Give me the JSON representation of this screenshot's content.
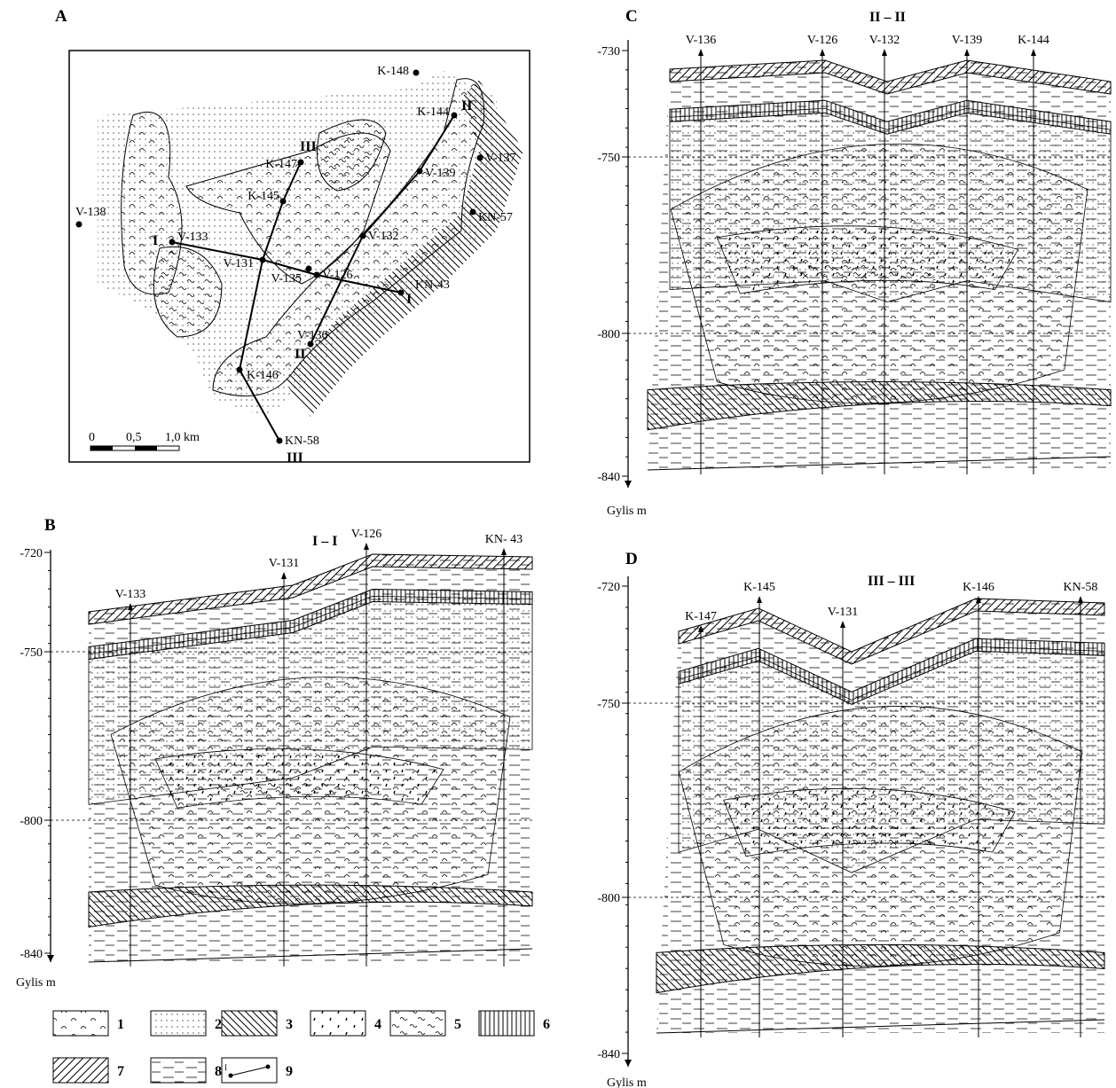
{
  "map": {
    "letter": "A",
    "wells": [
      "K-148",
      "K-144",
      "V-137",
      "K-147",
      "V-139",
      "K-145",
      "KN-57",
      "V-138",
      "V-133",
      "V-132",
      "V-131",
      "V-135",
      "V-126",
      "KN-43",
      "V-136",
      "K-146",
      "KN-58"
    ],
    "section_marks": [
      "I",
      "I",
      "II",
      "II",
      "III",
      "III"
    ],
    "scale": [
      "0",
      "0,5",
      "1,0 km"
    ]
  },
  "sections": [
    {
      "letter": "B",
      "title": "I – I",
      "wells": [
        "V-133",
        "V-131",
        "V-126",
        "KN- 43"
      ],
      "depths": [
        "-720",
        "-750",
        "-800",
        "-840"
      ],
      "axis_label": "Gylis  m"
    },
    {
      "letter": "C",
      "title": "II – II",
      "wells": [
        "V-136",
        "V-126",
        "V-132",
        "V-139",
        "K-144"
      ],
      "depths": [
        "-730",
        "-750",
        "-800",
        "-840"
      ],
      "axis_label": "Gylis m"
    },
    {
      "letter": "D",
      "title": "III – III",
      "wells": [
        "K-147",
        "K-145",
        "V-131",
        "K-146",
        "KN-58"
      ],
      "depths": [
        "-720",
        "-750",
        "-800",
        "-840"
      ],
      "axis_label": "Gylis m"
    }
  ],
  "legend": {
    "items": [
      "1",
      "2",
      "3",
      "4",
      "5",
      "6",
      "7",
      "8",
      "9"
    ],
    "section_end": "I"
  }
}
